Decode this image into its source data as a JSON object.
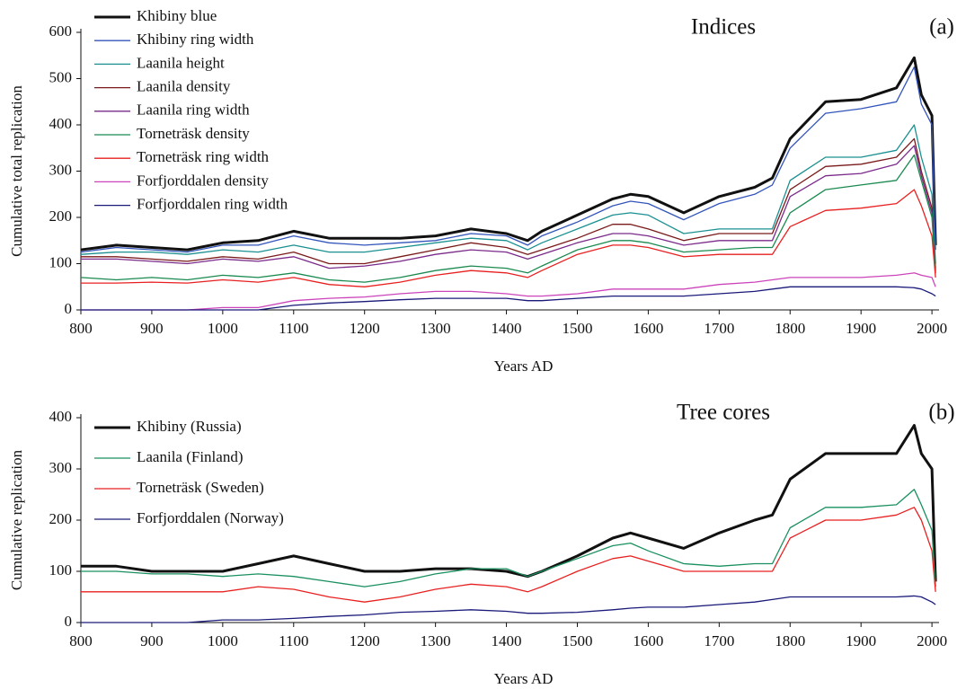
{
  "chart_data": [
    {
      "type": "line",
      "title": "Indices",
      "panel_label": "(a)",
      "x_label": "Years AD",
      "y_label": "Cumulative total replication",
      "x": [
        800,
        850,
        900,
        950,
        1000,
        1050,
        1100,
        1150,
        1200,
        1250,
        1300,
        1350,
        1400,
        1430,
        1450,
        1500,
        1550,
        1575,
        1600,
        1650,
        1700,
        1750,
        1775,
        1800,
        1850,
        1900,
        1950,
        1975,
        1985,
        2000,
        2005
      ],
      "xlim": [
        800,
        2010
      ],
      "xticks": [
        800,
        900,
        1000,
        1100,
        1200,
        1300,
        1400,
        1500,
        1600,
        1700,
        1800,
        1900,
        2000
      ],
      "ylim": [
        0,
        600
      ],
      "yticks": [
        0,
        100,
        200,
        300,
        400,
        500,
        600
      ],
      "legend": "upper left",
      "series": [
        {
          "name": "Khibiny blue",
          "color": "#111111",
          "width": 3,
          "values": [
            130,
            140,
            135,
            130,
            145,
            150,
            170,
            155,
            155,
            155,
            160,
            175,
            165,
            150,
            170,
            205,
            240,
            250,
            245,
            210,
            245,
            265,
            285,
            370,
            450,
            455,
            480,
            545,
            465,
            420,
            140
          ]
        },
        {
          "name": "Khibiny ring width",
          "color": "#3355bb",
          "width": 1.3,
          "values": [
            125,
            135,
            130,
            125,
            140,
            140,
            160,
            145,
            140,
            145,
            150,
            165,
            160,
            140,
            160,
            190,
            225,
            235,
            230,
            195,
            230,
            250,
            270,
            350,
            425,
            435,
            450,
            525,
            445,
            400,
            130
          ]
        },
        {
          "name": "Laanila height",
          "color": "#1a9090",
          "width": 1.3,
          "values": [
            120,
            125,
            125,
            120,
            130,
            125,
            140,
            125,
            125,
            135,
            145,
            155,
            150,
            130,
            145,
            175,
            205,
            210,
            205,
            165,
            175,
            175,
            175,
            280,
            330,
            330,
            345,
            400,
            330,
            250,
            100
          ]
        },
        {
          "name": "Laanila density",
          "color": "#7a1a1a",
          "width": 1.3,
          "values": [
            115,
            115,
            110,
            105,
            115,
            110,
            125,
            100,
            100,
            115,
            130,
            145,
            135,
            120,
            130,
            155,
            185,
            185,
            175,
            150,
            165,
            165,
            165,
            260,
            310,
            315,
            330,
            370,
            300,
            220,
            90
          ]
        },
        {
          "name": "Laanila ring width",
          "color": "#7a2a8a",
          "width": 1.3,
          "values": [
            110,
            110,
            105,
            100,
            110,
            105,
            115,
            90,
            95,
            105,
            120,
            130,
            125,
            110,
            120,
            145,
            165,
            165,
            160,
            140,
            150,
            150,
            150,
            245,
            290,
            295,
            315,
            355,
            290,
            210,
            85
          ]
        },
        {
          "name": "Torneträsk density",
          "color": "#1a8a50",
          "width": 1.3,
          "values": [
            70,
            65,
            70,
            65,
            75,
            70,
            80,
            65,
            60,
            70,
            85,
            95,
            90,
            80,
            95,
            130,
            150,
            150,
            145,
            125,
            130,
            135,
            135,
            210,
            260,
            270,
            280,
            335,
            280,
            200,
            80
          ]
        },
        {
          "name": "Torneträsk ring width",
          "color": "#e82020",
          "width": 1.3,
          "values": [
            58,
            58,
            60,
            58,
            65,
            60,
            70,
            55,
            50,
            60,
            75,
            85,
            80,
            70,
            85,
            120,
            140,
            140,
            135,
            115,
            120,
            120,
            120,
            180,
            215,
            220,
            230,
            260,
            225,
            160,
            70
          ]
        },
        {
          "name": "Forfjorddalen density",
          "color": "#cc44bb",
          "width": 1.3,
          "values": [
            0,
            0,
            0,
            0,
            5,
            5,
            20,
            25,
            28,
            35,
            40,
            40,
            35,
            30,
            30,
            35,
            45,
            45,
            45,
            45,
            55,
            60,
            65,
            70,
            70,
            70,
            75,
            80,
            75,
            70,
            50
          ]
        },
        {
          "name": "Forfjorddalen ring width",
          "color": "#1a1a7a",
          "width": 1.3,
          "values": [
            0,
            0,
            0,
            0,
            0,
            0,
            10,
            15,
            18,
            22,
            25,
            25,
            25,
            20,
            20,
            25,
            30,
            30,
            30,
            30,
            35,
            40,
            45,
            50,
            50,
            50,
            50,
            48,
            45,
            35,
            30
          ]
        }
      ]
    },
    {
      "type": "line",
      "title": "Tree cores",
      "panel_label": "(b)",
      "x_label": "Years AD",
      "y_label": "Cumulative replication",
      "x": [
        800,
        850,
        900,
        950,
        1000,
        1050,
        1100,
        1150,
        1200,
        1250,
        1300,
        1350,
        1400,
        1430,
        1450,
        1500,
        1550,
        1575,
        1600,
        1650,
        1700,
        1750,
        1775,
        1800,
        1850,
        1900,
        1950,
        1975,
        1985,
        2000,
        2005
      ],
      "xlim": [
        800,
        2010
      ],
      "xticks": [
        800,
        900,
        1000,
        1100,
        1200,
        1300,
        1400,
        1500,
        1600,
        1700,
        1800,
        1900,
        2000
      ],
      "ylim": [
        0,
        400
      ],
      "yticks": [
        0,
        100,
        200,
        300,
        400
      ],
      "legend": "upper left",
      "series": [
        {
          "name": "Khibiny (Russia)",
          "color": "#111111",
          "width": 3,
          "values": [
            110,
            110,
            100,
            100,
            100,
            115,
            130,
            115,
            100,
            100,
            105,
            105,
            100,
            90,
            100,
            130,
            165,
            175,
            165,
            145,
            175,
            200,
            210,
            280,
            330,
            330,
            330,
            385,
            330,
            300,
            80
          ]
        },
        {
          "name": "Laanila (Finland)",
          "color": "#1a9060",
          "width": 1.3,
          "values": [
            100,
            100,
            95,
            95,
            90,
            95,
            90,
            80,
            70,
            80,
            95,
            105,
            105,
            90,
            100,
            125,
            150,
            155,
            140,
            115,
            110,
            115,
            115,
            185,
            225,
            225,
            230,
            260,
            230,
            180,
            70
          ]
        },
        {
          "name": "Torneträsk (Sweden)",
          "color": "#e82020",
          "width": 1.3,
          "values": [
            60,
            60,
            60,
            60,
            60,
            70,
            65,
            50,
            40,
            50,
            65,
            75,
            70,
            60,
            70,
            100,
            125,
            130,
            120,
            100,
            100,
            100,
            100,
            165,
            200,
            200,
            210,
            225,
            200,
            140,
            60
          ]
        },
        {
          "name": "Forfjorddalen (Norway)",
          "color": "#1a1a7a",
          "width": 1.3,
          "values": [
            0,
            0,
            0,
            0,
            5,
            5,
            8,
            12,
            15,
            20,
            22,
            25,
            22,
            18,
            18,
            20,
            25,
            28,
            30,
            30,
            35,
            40,
            45,
            50,
            50,
            50,
            50,
            52,
            50,
            40,
            35
          ]
        }
      ]
    }
  ]
}
